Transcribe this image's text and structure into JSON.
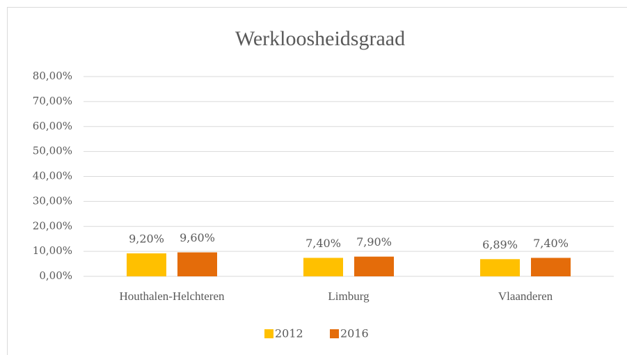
{
  "chart_data": {
    "type": "bar",
    "title": "Werkloosheidsgraad",
    "categories": [
      "Houthalen-Helchteren",
      "Limburg",
      "Vlaanderen"
    ],
    "series": [
      {
        "name": "2012",
        "color": "#FFC000",
        "values": [
          9.2,
          7.4,
          6.89
        ],
        "value_labels": [
          "9,20%",
          "7,40%",
          "6,89%"
        ]
      },
      {
        "name": "2016",
        "color": "#E46C0A",
        "values": [
          9.6,
          7.9,
          7.4
        ],
        "value_labels": [
          "9,60%",
          "7,90%",
          "7,40%"
        ]
      }
    ],
    "ylim": [
      0,
      80
    ],
    "yticks": [
      {
        "value": 0,
        "label": "0,00%"
      },
      {
        "value": 10,
        "label": "10,00%"
      },
      {
        "value": 20,
        "label": "20,00%"
      },
      {
        "value": 30,
        "label": "30,00%"
      },
      {
        "value": 40,
        "label": "40,00%"
      },
      {
        "value": 50,
        "label": "50,00%"
      },
      {
        "value": 60,
        "label": "60,00%"
      },
      {
        "value": 70,
        "label": "70,00%"
      },
      {
        "value": 80,
        "label": "80,00%"
      }
    ],
    "grid": true,
    "legend": "bottom"
  }
}
